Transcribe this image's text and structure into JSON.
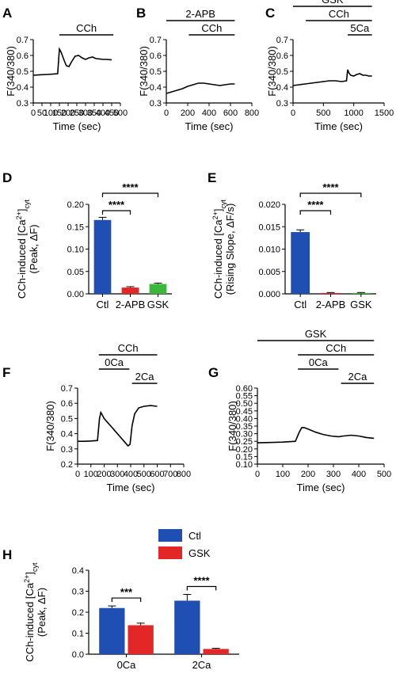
{
  "colors": {
    "ctl": "#1f4fb3",
    "twoapb": "#e32626",
    "gsk": "#3ab83a",
    "black": "#000000"
  },
  "chart_data": [
    {
      "panel": "A",
      "type": "line",
      "ylabel": "F(340/380)",
      "xlabel": "Time (sec)",
      "xlim": [
        0,
        500
      ],
      "ylim": [
        0.3,
        0.7
      ],
      "xticks": [
        "0",
        "50",
        "100",
        "150",
        "200",
        "250",
        "300",
        "350",
        "400",
        "450",
        "500"
      ],
      "yticks": [
        "0.3",
        "0.4",
        "0.5",
        "0.6",
        "0.7"
      ],
      "annotations": [
        {
          "label": "CCh",
          "start": 150,
          "end": 460
        }
      ],
      "trace": {
        "x": [
          0,
          40,
          80,
          110,
          140,
          150,
          160,
          175,
          190,
          205,
          220,
          240,
          260,
          280,
          300,
          320,
          340,
          360,
          380,
          400,
          420,
          450
        ],
        "y": [
          0.475,
          0.478,
          0.48,
          0.482,
          0.485,
          0.64,
          0.62,
          0.575,
          0.535,
          0.53,
          0.56,
          0.595,
          0.6,
          0.585,
          0.575,
          0.585,
          0.59,
          0.58,
          0.578,
          0.575,
          0.575,
          0.572
        ]
      }
    },
    {
      "panel": "B",
      "type": "line",
      "ylabel": "F(340/380)",
      "xlabel": "Time (sec)",
      "xlim": [
        0,
        800
      ],
      "ylim": [
        0.3,
        0.7
      ],
      "xticks": [
        "0",
        "200",
        "400",
        "600",
        "800"
      ],
      "yticks": [
        "0.3",
        "0.4",
        "0.5",
        "0.6",
        "0.7"
      ],
      "annotations": [
        {
          "label": "2-APB",
          "start": 0,
          "end": 640
        },
        {
          "label": "CCh",
          "start": 210,
          "end": 640
        }
      ],
      "trace": {
        "x": [
          0,
          50,
          100,
          150,
          200,
          250,
          300,
          350,
          400,
          450,
          500,
          550,
          600,
          640
        ],
        "y": [
          0.36,
          0.37,
          0.38,
          0.39,
          0.405,
          0.415,
          0.425,
          0.425,
          0.42,
          0.415,
          0.41,
          0.415,
          0.42,
          0.42
        ]
      }
    },
    {
      "panel": "C",
      "type": "line",
      "ylabel": "F(340/380)",
      "xlabel": "Time (sec)",
      "xlim": [
        0,
        1500
      ],
      "ylim": [
        0.3,
        0.7
      ],
      "xticks": [
        "0",
        "500",
        "1000",
        "1500"
      ],
      "yticks": [
        "0.3",
        "0.4",
        "0.5",
        "0.6",
        "0.7"
      ],
      "annotations": [
        {
          "label": "GSK",
          "start": 0,
          "end": 1300
        },
        {
          "label": "CCh",
          "start": 210,
          "end": 1300
        },
        {
          "label": "5Ca",
          "start": 900,
          "end": 1300
        }
      ],
      "trace": {
        "x": [
          0,
          100,
          200,
          300,
          400,
          500,
          600,
          700,
          800,
          880,
          900,
          920,
          950,
          1000,
          1050,
          1100,
          1150,
          1200,
          1250,
          1300
        ],
        "y": [
          0.41,
          0.415,
          0.42,
          0.425,
          0.43,
          0.435,
          0.44,
          0.44,
          0.435,
          0.44,
          0.51,
          0.49,
          0.475,
          0.47,
          0.48,
          0.485,
          0.475,
          0.475,
          0.47,
          0.47
        ]
      }
    },
    {
      "panel": "D",
      "type": "bar",
      "ylabel_parts": {
        "pre": "CCh-induced [Ca",
        "sup": "2+",
        "post": "]",
        "sub": "cyt",
        "line2": "(Peak, ΔF)"
      },
      "categories": [
        "Ctl",
        "2-APB",
        "GSK"
      ],
      "values": [
        0.165,
        0.014,
        0.022
      ],
      "errors": [
        0.006,
        0.002,
        0.002
      ],
      "ylim": [
        0,
        0.2
      ],
      "yticks": [
        "0.00",
        "0.05",
        "0.10",
        "0.15",
        "0.20"
      ],
      "significance": [
        {
          "label": "****",
          "from": 0,
          "to": 1
        },
        {
          "label": "****",
          "from": 0,
          "to": 2
        }
      ]
    },
    {
      "panel": "E",
      "type": "bar",
      "ylabel_parts": {
        "pre": "CCh-induced [Ca",
        "sup": "2+",
        "post": "]",
        "sub": "cyt",
        "line2": "(Rising Slope, ΔF/s)"
      },
      "categories": [
        "Ctl",
        "2-APB",
        "GSK"
      ],
      "values": [
        0.0138,
        0.0002,
        0.0002
      ],
      "errors": [
        0.0005,
        0.0001,
        0.0001
      ],
      "ylim": [
        0,
        0.02
      ],
      "yticks": [
        "0.000",
        "0.005",
        "0.010",
        "0.015",
        "0.020"
      ],
      "significance": [
        {
          "label": "****",
          "from": 0,
          "to": 1
        },
        {
          "label": "****",
          "from": 0,
          "to": 2
        }
      ]
    },
    {
      "panel": "F",
      "type": "line",
      "ylabel": "F(340/380)",
      "xlabel": "Time (sec)",
      "xlim": [
        0,
        800
      ],
      "ylim": [
        0.2,
        0.7
      ],
      "xticks": [
        "0",
        "100",
        "200",
        "300",
        "400",
        "500",
        "600",
        "700",
        "800"
      ],
      "yticks": [
        "0.2",
        "0.3",
        "0.4",
        "0.5",
        "0.6",
        "0.7"
      ],
      "annotations": [
        {
          "label": "CCh",
          "start": 160,
          "end": 600
        },
        {
          "label": "0Ca",
          "start": 160,
          "end": 390
        },
        {
          "label": "2Ca",
          "start": 410,
          "end": 600
        }
      ],
      "trace": {
        "x": [
          0,
          50,
          100,
          150,
          165,
          175,
          200,
          230,
          260,
          290,
          320,
          350,
          380,
          395,
          410,
          430,
          460,
          500,
          550,
          600
        ],
        "y": [
          0.35,
          0.35,
          0.352,
          0.355,
          0.5,
          0.54,
          0.5,
          0.47,
          0.44,
          0.41,
          0.38,
          0.35,
          0.32,
          0.33,
          0.45,
          0.53,
          0.57,
          0.58,
          0.585,
          0.58
        ]
      }
    },
    {
      "panel": "G",
      "type": "line",
      "ylabel": "F(340/380)",
      "xlabel": "Time (sec)",
      "xlim": [
        0,
        500
      ],
      "ylim": [
        0.1,
        0.6
      ],
      "xticks": [
        "0",
        "100",
        "200",
        "300",
        "400",
        "500"
      ],
      "yticks": [
        "0.10",
        "0.15",
        "0.20",
        "0.25",
        "0.30",
        "0.35",
        "0.40",
        "0.45",
        "0.50",
        "0.55",
        "0.60"
      ],
      "annotations": [
        {
          "label": "GSK",
          "start": 0,
          "end": 460
        },
        {
          "label": "CCh",
          "start": 160,
          "end": 460
        },
        {
          "label": "0Ca",
          "start": 160,
          "end": 320
        },
        {
          "label": "2Ca",
          "start": 330,
          "end": 460
        }
      ],
      "trace": {
        "x": [
          0,
          50,
          100,
          150,
          165,
          175,
          185,
          200,
          230,
          260,
          290,
          320,
          340,
          370,
          400,
          430,
          460
        ],
        "y": [
          0.24,
          0.242,
          0.245,
          0.25,
          0.31,
          0.34,
          0.34,
          0.33,
          0.31,
          0.295,
          0.285,
          0.28,
          0.285,
          0.29,
          0.285,
          0.275,
          0.27
        ]
      }
    },
    {
      "panel": "H",
      "type": "bar",
      "ylabel_parts": {
        "pre": "CCh-induced [Ca",
        "sup": "2+",
        "post": "]",
        "sub": "cyt",
        "line2": "(Peak, ΔF)"
      },
      "categories": [
        "0Ca",
        "2Ca"
      ],
      "series": [
        {
          "name": "Ctl",
          "values": [
            0.22,
            0.255
          ],
          "errors": [
            0.01,
            0.03
          ]
        },
        {
          "name": "GSK",
          "values": [
            0.138,
            0.025
          ],
          "errors": [
            0.01,
            0.003
          ]
        }
      ],
      "ylim": [
        0,
        0.4
      ],
      "yticks": [
        "0.0",
        "0.1",
        "0.2",
        "0.3",
        "0.4"
      ],
      "legend_position": "top-left",
      "significance": [
        {
          "label": "***",
          "category": 0
        },
        {
          "label": "****",
          "category": 1
        }
      ]
    }
  ]
}
